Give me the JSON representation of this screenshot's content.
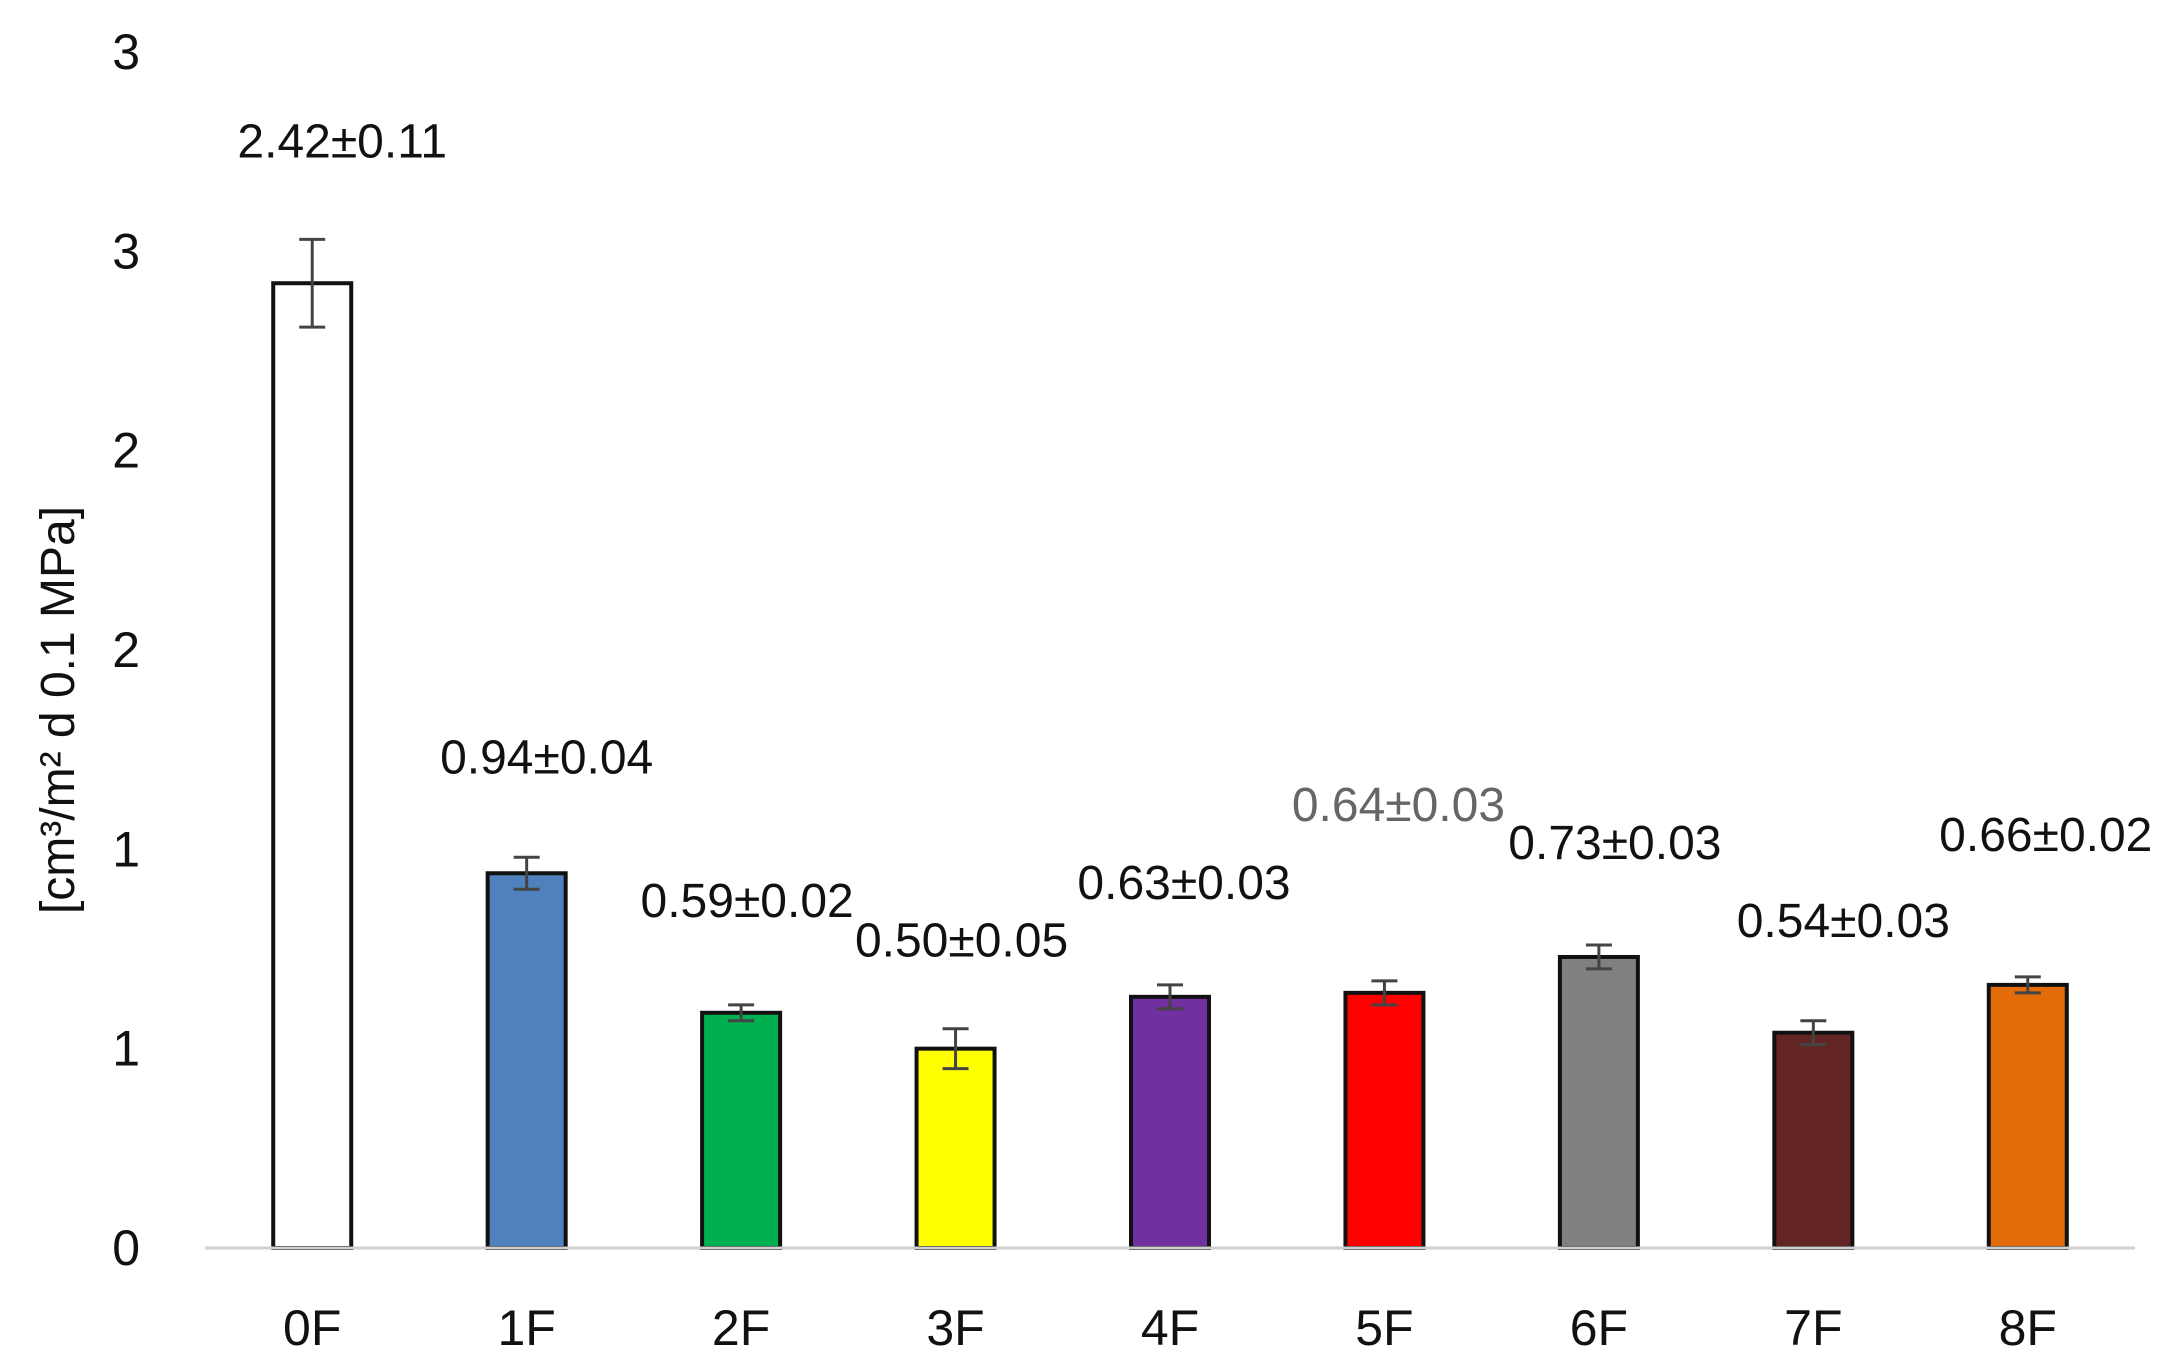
{
  "chart_data": {
    "type": "bar",
    "title": "",
    "xlabel": "",
    "ylabel": "[cm³/m² d 0.1 MPa]",
    "categories": [
      "0F",
      "1F",
      "2F",
      "3F",
      "4F",
      "5F",
      "6F",
      "7F",
      "8F"
    ],
    "values": [
      2.42,
      0.94,
      0.59,
      0.5,
      0.63,
      0.64,
      0.73,
      0.54,
      0.66
    ],
    "errors": [
      0.11,
      0.04,
      0.02,
      0.05,
      0.03,
      0.03,
      0.03,
      0.03,
      0.02
    ],
    "data_labels": [
      "2.42±0.11",
      "0.94±0.04",
      "0.59±0.02",
      "0.50±0.05",
      "0.63±0.03",
      "0.64±0.03",
      "0.73±0.03",
      "0.54±0.03",
      "0.66±0.02"
    ],
    "data_label_colors": [
      "#111111",
      "#111111",
      "#111111",
      "#111111",
      "#111111",
      "#666666",
      "#111111",
      "#111111",
      "#111111"
    ],
    "bar_colors": [
      "#ffffff",
      "#4f81bd",
      "#00b050",
      "#ffff00",
      "#7030a0",
      "#ff0000",
      "#808080",
      "#632523",
      "#e36c09"
    ],
    "bar_outline": "#111111",
    "error_bar_color": "#444444",
    "ylim": [
      0,
      3
    ],
    "y_ticks": [
      0,
      0.5,
      1,
      1.5,
      2,
      2.5,
      3
    ],
    "y_tick_labels": [
      "0",
      "1",
      "1",
      "2",
      "2",
      "3",
      "3"
    ],
    "grid": false,
    "legend": "none"
  }
}
